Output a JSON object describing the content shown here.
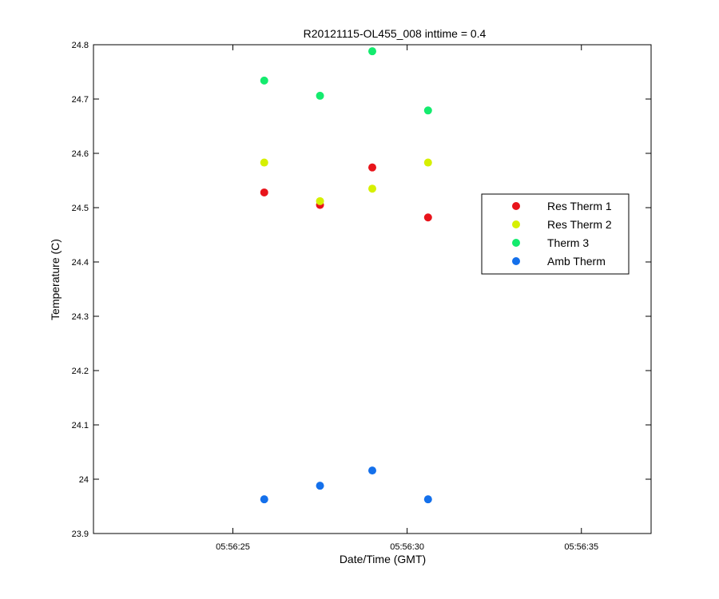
{
  "chart_data": {
    "type": "scatter",
    "title": "R20121115-OL455_008 inttime = 0.4",
    "xlabel": "Date/Time (GMT)",
    "ylabel": "Temperature (C)",
    "xlim": [
      "05:56:21",
      "05:56:37"
    ],
    "ylim": [
      23.9,
      24.8
    ],
    "grid": false,
    "legend_position": "right",
    "x_ticks": [
      "05:56:25",
      "05:56:30",
      "05:56:35"
    ],
    "y_ticks": [
      "23.9",
      "24",
      "24.1",
      "24.2",
      "24.3",
      "24.4",
      "24.5",
      "24.6",
      "24.7",
      "24.8"
    ],
    "x": [
      "05:56:25.9",
      "05:56:27.5",
      "05:56:29.0",
      "05:56:30.6"
    ],
    "series": [
      {
        "name": "Res Therm 1",
        "color": "#e8141b",
        "values": [
          24.528,
          24.505,
          24.574,
          24.482
        ]
      },
      {
        "name": "Res Therm 2",
        "color": "#d6f000",
        "values": [
          24.583,
          24.512,
          24.535,
          24.583
        ]
      },
      {
        "name": "Therm 3",
        "color": "#14eb6e",
        "values": [
          24.734,
          24.706,
          24.788,
          24.679
        ]
      },
      {
        "name": "Amb Therm",
        "color": "#1470eb",
        "values": [
          23.963,
          23.988,
          24.016,
          23.963
        ]
      }
    ]
  }
}
